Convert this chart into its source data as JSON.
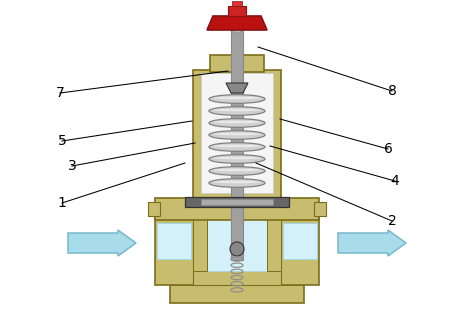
{
  "bg_color": "#ffffff",
  "body_color": "#c8bc6e",
  "body_edge": "#7a6e1a",
  "spring_color": "#b0b0b0",
  "rod_color": "#a0a0a0",
  "knob_color": "#bb1111",
  "knob_edge": "#881111",
  "water_color": "#d4f0f8",
  "water_edge": "#a0d8e8",
  "arrow_color": "#a8dcea",
  "arrow_edge": "#78b8cc",
  "dark_color": "#333333",
  "mid_dark": "#555555",
  "white_inner": "#f5f5f5",
  "label_fontsize": 10,
  "labels": [
    [
      "1",
      62,
      108,
      185,
      148
    ],
    [
      "2",
      392,
      90,
      256,
      148
    ],
    [
      "3",
      72,
      145,
      195,
      168
    ],
    [
      "4",
      395,
      130,
      270,
      165
    ],
    [
      "5",
      62,
      170,
      192,
      190
    ],
    [
      "6",
      388,
      162,
      280,
      192
    ],
    [
      "7",
      60,
      218,
      228,
      240
    ],
    [
      "8",
      392,
      220,
      258,
      264
    ]
  ]
}
